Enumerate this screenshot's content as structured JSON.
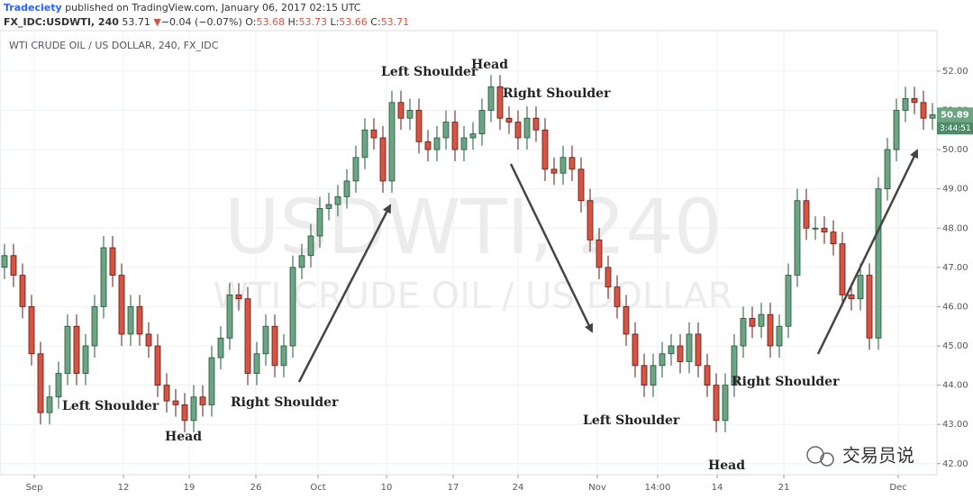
{
  "header": {
    "author": "Tradeciety",
    "published": "published on TradingView.com, January 06, 2017 02:15 UTC",
    "symbol": "FX_IDC:USDWTI, 240",
    "last": "53.71",
    "change": "−0.04 (−0.07%)",
    "ohlc": [
      "O:",
      "53.68",
      "H:",
      "53.73",
      "L:",
      "53.66",
      "C:",
      "53.71"
    ]
  },
  "chart_data": {
    "type": "candlestick",
    "title": "WTI CRUDE OIL / US DOLLAR, 240, FX_IDC",
    "watermark": [
      "USDWTI, 240",
      "WTI CRUDE OIL / US DOLLAR"
    ],
    "up_color": "#6ba583",
    "down_color": "#d75442",
    "up_border": "#225437",
    "down_border": "#5b1a13",
    "x": [
      0,
      1,
      2,
      3,
      4,
      5,
      6,
      7,
      8,
      9,
      10,
      11,
      12,
      13,
      14,
      15,
      16,
      17,
      18,
      19,
      20,
      21,
      22,
      23,
      24,
      25,
      26,
      27,
      28,
      29,
      30,
      31,
      32,
      33,
      34,
      35,
      36,
      37,
      38,
      39,
      40,
      41,
      42,
      43,
      44,
      45,
      46,
      47,
      48,
      49,
      50,
      51,
      52,
      53,
      54,
      55,
      56,
      57,
      58,
      59,
      60,
      61,
      62,
      63,
      64,
      65,
      66,
      67,
      68,
      69,
      70,
      71,
      72,
      73,
      74,
      75,
      76,
      77,
      78,
      79,
      80,
      81,
      82,
      83,
      84,
      85,
      86,
      87,
      88,
      89,
      90,
      91,
      92,
      93,
      94,
      95,
      96,
      97,
      98,
      99,
      100,
      101,
      102,
      103
    ],
    "open": [
      47.0,
      47.3,
      46.8,
      46.0,
      44.8,
      43.3,
      43.7,
      44.3,
      45.5,
      44.3,
      45.0,
      46.0,
      47.5,
      46.8,
      45.3,
      46.0,
      45.3,
      45.0,
      44.0,
      43.6,
      43.5,
      43.1,
      43.7,
      43.5,
      44.7,
      45.2,
      46.3,
      46.2,
      44.3,
      44.8,
      45.5,
      44.5,
      45.0,
      47.0,
      47.3,
      47.8,
      48.5,
      48.6,
      48.8,
      49.2,
      49.8,
      50.5,
      50.3,
      49.2,
      51.2,
      50.8,
      51.0,
      50.2,
      50.0,
      50.3,
      50.7,
      50.0,
      50.3,
      50.4,
      51.0,
      51.6,
      50.8,
      50.7,
      50.3,
      50.8,
      50.5,
      49.5,
      49.4,
      49.8,
      49.5,
      48.7,
      47.7,
      47.0,
      46.5,
      46.0,
      45.3,
      44.5,
      44.0,
      44.5,
      44.8,
      45.0,
      44.6,
      45.3,
      44.5,
      44.0,
      43.1,
      44.0,
      45.0,
      45.7,
      45.5,
      45.8,
      45.0,
      45.5,
      46.8,
      48.7,
      48.0,
      48.0,
      47.9,
      47.6,
      46.3,
      46.2,
      46.8,
      45.2,
      49.0,
      50.0,
      51.0,
      51.3,
      51.2,
      50.8
    ],
    "high": [
      47.6,
      47.6,
      47.1,
      46.3,
      45.1,
      44.0,
      44.6,
      45.8,
      45.8,
      45.3,
      46.3,
      47.8,
      47.8,
      47.1,
      46.3,
      46.3,
      45.6,
      45.3,
      44.3,
      43.9,
      43.8,
      44.0,
      44.0,
      45.0,
      45.5,
      46.6,
      46.6,
      46.5,
      45.1,
      45.8,
      45.8,
      45.3,
      47.3,
      47.6,
      48.1,
      48.8,
      48.9,
      49.1,
      49.5,
      50.1,
      50.8,
      50.8,
      50.6,
      51.5,
      51.5,
      51.3,
      51.3,
      50.5,
      50.6,
      51.0,
      51.0,
      50.6,
      50.7,
      51.3,
      51.9,
      51.9,
      51.1,
      51.0,
      51.1,
      51.1,
      50.8,
      49.8,
      50.1,
      50.1,
      49.8,
      49.0,
      48.0,
      47.3,
      46.8,
      46.3,
      45.6,
      44.8,
      44.8,
      45.1,
      45.3,
      45.3,
      45.6,
      45.6,
      44.8,
      44.3,
      44.3,
      45.3,
      46.0,
      46.0,
      46.1,
      46.1,
      45.8,
      47.1,
      49.0,
      49.0,
      48.3,
      48.3,
      48.2,
      47.9,
      46.6,
      47.1,
      47.1,
      49.3,
      50.3,
      51.3,
      51.6,
      51.6,
      51.5,
      51.19
    ],
    "low": [
      46.7,
      46.5,
      45.7,
      44.5,
      43.0,
      43.0,
      43.4,
      44.0,
      44.0,
      44.0,
      44.7,
      45.7,
      46.5,
      45.0,
      45.0,
      45.0,
      44.7,
      43.7,
      43.3,
      43.2,
      42.8,
      42.8,
      43.2,
      43.2,
      44.4,
      44.9,
      45.9,
      44.0,
      44.0,
      44.5,
      44.2,
      44.2,
      44.7,
      46.7,
      47.0,
      47.5,
      48.2,
      48.3,
      48.5,
      48.9,
      49.5,
      50.0,
      48.9,
      48.9,
      50.5,
      50.5,
      49.9,
      49.7,
      49.7,
      50.0,
      49.7,
      49.7,
      50.0,
      50.1,
      50.7,
      50.5,
      50.4,
      50.0,
      50.0,
      50.2,
      49.2,
      49.1,
      49.1,
      49.2,
      48.4,
      47.4,
      46.7,
      46.2,
      45.7,
      45.0,
      44.2,
      43.7,
      43.7,
      44.2,
      44.5,
      44.3,
      44.3,
      44.2,
      43.7,
      42.8,
      42.8,
      43.7,
      44.7,
      45.2,
      45.2,
      44.7,
      44.7,
      45.2,
      46.5,
      47.7,
      47.7,
      47.6,
      47.3,
      46.0,
      45.9,
      45.9,
      44.9,
      44.9,
      48.7,
      49.7,
      50.7,
      50.9,
      50.5,
      50.5
    ],
    "close": [
      47.3,
      46.8,
      46.0,
      44.8,
      43.3,
      43.7,
      44.3,
      45.5,
      44.3,
      45.0,
      46.0,
      47.5,
      46.8,
      45.3,
      46.0,
      45.3,
      45.0,
      44.0,
      43.6,
      43.5,
      43.1,
      43.7,
      43.5,
      44.7,
      45.2,
      46.3,
      46.2,
      44.3,
      44.8,
      45.5,
      44.5,
      45.0,
      47.0,
      47.3,
      47.8,
      48.5,
      48.6,
      48.8,
      49.2,
      49.8,
      50.5,
      50.3,
      49.2,
      51.2,
      50.8,
      51.0,
      50.2,
      50.0,
      50.3,
      50.7,
      50.0,
      50.3,
      50.4,
      51.0,
      51.6,
      50.8,
      50.7,
      50.3,
      50.8,
      50.5,
      49.5,
      49.4,
      49.8,
      49.5,
      48.7,
      47.7,
      47.0,
      46.5,
      46.0,
      45.3,
      44.5,
      44.0,
      44.5,
      44.8,
      45.0,
      44.6,
      45.3,
      44.5,
      44.0,
      43.1,
      44.0,
      45.0,
      45.7,
      45.5,
      45.8,
      45.0,
      45.5,
      46.8,
      48.7,
      48.0,
      48.0,
      47.9,
      47.6,
      46.3,
      46.2,
      46.8,
      45.2,
      49.0,
      50.0,
      51.0,
      51.3,
      51.2,
      50.8,
      50.89
    ],
    "xlim": [
      -0.5,
      103.5
    ],
    "xticks": [
      {
        "value": 3.3,
        "label": "Sep"
      },
      {
        "value": 13.2,
        "label": "12"
      },
      {
        "value": 20.5,
        "label": "19"
      },
      {
        "value": 27.9,
        "label": "26"
      },
      {
        "value": 34.8,
        "label": "Oct"
      },
      {
        "value": 42.4,
        "label": "10"
      },
      {
        "value": 49.8,
        "label": "17"
      },
      {
        "value": 57,
        "label": "24"
      },
      {
        "value": 65.8,
        "label": "Nov"
      },
      {
        "value": 72.5,
        "label": "14:00"
      },
      {
        "value": 79.1,
        "label": "14"
      },
      {
        "value": 86.5,
        "label": "21"
      },
      {
        "value": 99.2,
        "label": "Dec"
      }
    ],
    "ylim": [
      41.72,
      53.03
    ],
    "yticks": [
      {
        "value": 42,
        "label": "42.00"
      },
      {
        "value": 43,
        "label": "43.00"
      },
      {
        "value": 44,
        "label": "44.00"
      },
      {
        "value": 45,
        "label": "45.00"
      },
      {
        "value": 46,
        "label": "46.00"
      },
      {
        "value": 47,
        "label": "47.00"
      },
      {
        "value": 48,
        "label": "48.00"
      },
      {
        "value": 49,
        "label": "49.00"
      },
      {
        "value": 50,
        "label": "50.00"
      },
      {
        "value": 51,
        "label": "51.00"
      },
      {
        "value": 52,
        "label": "52.00"
      }
    ],
    "grid": true,
    "countdown": "3:44:51",
    "annotations": [
      "Left Shoulder",
      "Head",
      "Right Shoulder",
      "Left Shoulder",
      "Head",
      "Right Shoulder",
      "Left Shoulder",
      "Head",
      "Right Shoulder"
    ],
    "brand": "交易员说"
  }
}
